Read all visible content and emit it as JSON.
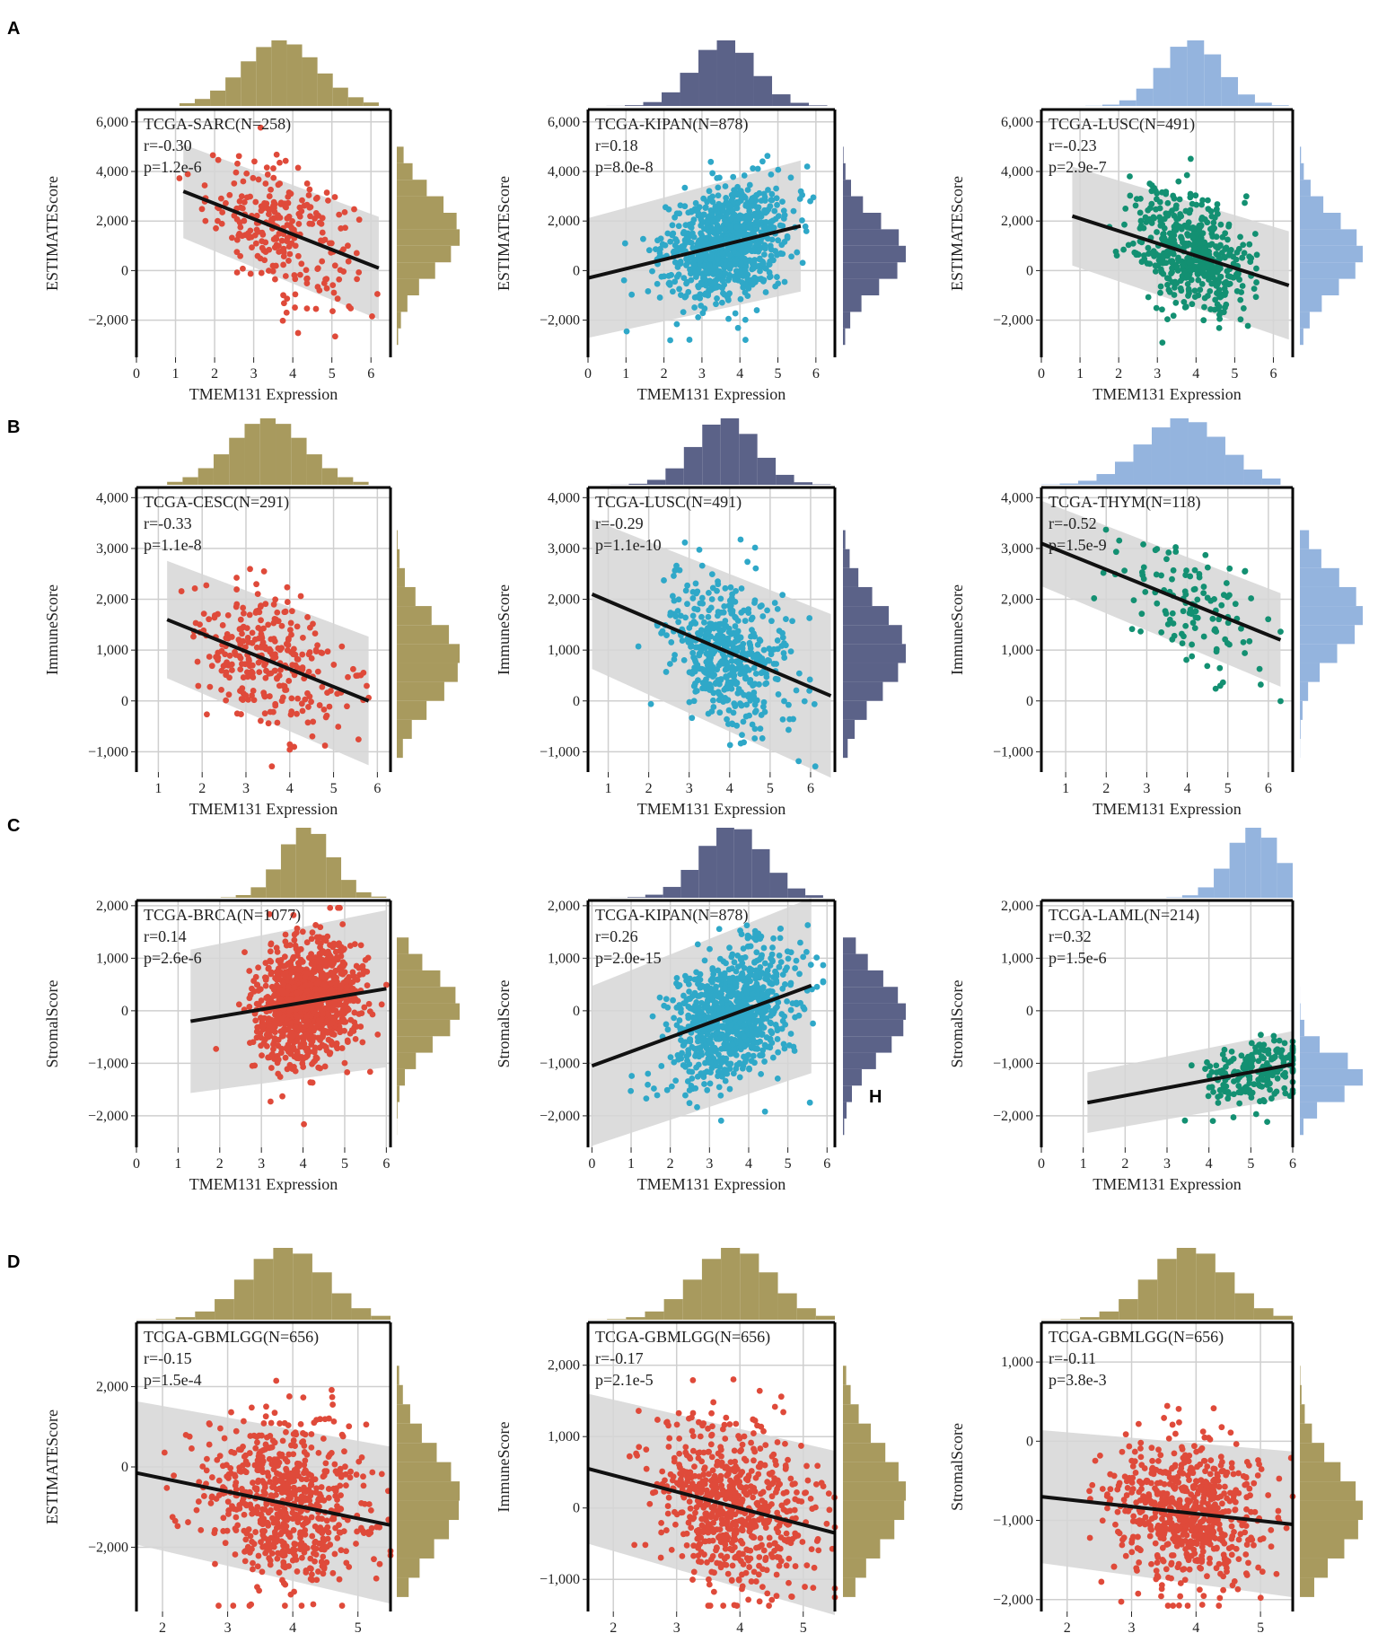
{
  "panel_labels": [
    "A",
    "B",
    "C",
    "D"
  ],
  "stray_label": "H",
  "colors": {
    "olive": "#a89a5e",
    "navy": "#5b6288",
    "lightblue": "#94b4de",
    "red": "#df4a3a",
    "cyan": "#2fa8c8",
    "teal": "#139072",
    "band": "#d6d6d6",
    "fit": "#111111"
  },
  "chart_data": [
    {
      "type": "scatter",
      "row": "A",
      "col": 0,
      "cohort": "TCGA-SARC(N=258)",
      "r_text": "r=-0.30",
      "p_text": "p=1.2e-6",
      "n": 258,
      "xlabel": "TMEM131 Expression",
      "ylabel": "ESTIMATEScore",
      "xlim": [
        0,
        6.5
      ],
      "ylim": [
        -3500,
        6500
      ],
      "xticks": [
        0,
        1,
        2,
        3,
        4,
        5,
        6
      ],
      "yticks": [
        -2000,
        0,
        2000,
        4000,
        6000
      ],
      "xtick_labels": [
        "0",
        "1",
        "2",
        "3",
        "4",
        "5",
        "6"
      ],
      "ytick_labels": [
        "−2,000",
        "0",
        "2,000",
        "4,000",
        "6,000"
      ],
      "point_color": "#df4a3a",
      "hist_color": "#a89a5e",
      "x_mean": 3.7,
      "x_sd": 0.95,
      "y_mean": 1500,
      "y_sd": 1500,
      "x_min_data": 1.1,
      "x_max_data": 6.2,
      "fit_line": {
        "x": [
          1.2,
          6.2
        ],
        "y": [
          3200,
          100
        ]
      },
      "band_halfwidth": 1800
    },
    {
      "type": "scatter",
      "row": "A",
      "col": 1,
      "cohort": "TCGA-KIPAN(N=878)",
      "r_text": "r=0.18",
      "p_text": "p=8.0e-8",
      "n": 878,
      "xlabel": "TMEM131 Expression",
      "ylabel": "ESTIMATEScore",
      "xlim": [
        0,
        6.5
      ],
      "ylim": [
        -3500,
        6500
      ],
      "xticks": [
        0,
        1,
        2,
        3,
        4,
        5,
        6
      ],
      "yticks": [
        -2000,
        0,
        2000,
        4000,
        6000
      ],
      "xtick_labels": [
        "0",
        "1",
        "2",
        "3",
        "4",
        "5",
        "6"
      ],
      "ytick_labels": [
        "−2,000",
        "0",
        "2,000",
        "4,000",
        "6,000"
      ],
      "point_color": "#2fa8c8",
      "hist_color": "#5b6288",
      "x_mean": 3.6,
      "x_sd": 0.8,
      "y_mean": 700,
      "y_sd": 1300,
      "x_min_data": 0,
      "x_max_data": 6.3,
      "fit_line": {
        "x": [
          0,
          5.6
        ],
        "y": [
          -300,
          1800
        ]
      },
      "band_halfwidth": 2300
    },
    {
      "type": "scatter",
      "row": "A",
      "col": 2,
      "cohort": "TCGA-LUSC(N=491)",
      "r_text": "r=-0.23",
      "p_text": "p=2.9e-7",
      "n": 491,
      "xlabel": "TMEM131 Expression",
      "ylabel": "ESTIMATEScore",
      "xlim": [
        0,
        6.5
      ],
      "ylim": [
        -3500,
        6500
      ],
      "xticks": [
        0,
        1,
        2,
        3,
        4,
        5,
        6
      ],
      "yticks": [
        -2000,
        0,
        2000,
        4000,
        6000
      ],
      "xtick_labels": [
        "0",
        "1",
        "2",
        "3",
        "4",
        "5",
        "6"
      ],
      "ytick_labels": [
        "−2,000",
        "0",
        "2,000",
        "4,000",
        "6,000"
      ],
      "point_color": "#139072",
      "hist_color": "#94b4de",
      "x_mean": 3.9,
      "x_sd": 0.75,
      "y_mean": 700,
      "y_sd": 1400,
      "x_min_data": 0.7,
      "x_max_data": 6.4,
      "fit_line": {
        "x": [
          0.8,
          6.4
        ],
        "y": [
          2200,
          -600
        ]
      },
      "band_halfwidth": 1900
    },
    {
      "type": "scatter",
      "row": "B",
      "col": 0,
      "cohort": "TCGA-CESC(N=291)",
      "r_text": "r=-0.33",
      "p_text": "p=1.1e-8",
      "n": 291,
      "xlabel": "TMEM131 Expression",
      "ylabel": "ImmuneScore",
      "xlim": [
        0.5,
        6.3
      ],
      "ylim": [
        -1400,
        4200
      ],
      "xticks": [
        1,
        2,
        3,
        4,
        5,
        6
      ],
      "yticks": [
        -1000,
        0,
        1000,
        2000,
        3000,
        4000
      ],
      "xtick_labels": [
        "1",
        "2",
        "3",
        "4",
        "5",
        "6"
      ],
      "ytick_labels": [
        "−1,000",
        "0",
        "1,000",
        "2,000",
        "3,000",
        "4,000"
      ],
      "point_color": "#df4a3a",
      "hist_color": "#a89a5e",
      "x_mean": 3.5,
      "x_sd": 0.85,
      "y_mean": 800,
      "y_sd": 800,
      "x_min_data": 1.2,
      "x_max_data": 5.8,
      "fit_line": {
        "x": [
          1.2,
          5.8
        ],
        "y": [
          1600,
          0
        ]
      },
      "band_halfwidth": 1100
    },
    {
      "type": "scatter",
      "row": "B",
      "col": 1,
      "cohort": "TCGA-LUSC(N=491)",
      "r_text": "r=-0.29",
      "p_text": "p=1.1e-10",
      "n": 491,
      "xlabel": "TMEM131 Expression",
      "ylabel": "ImmuneScore",
      "xlim": [
        0.5,
        6.6
      ],
      "ylim": [
        -1400,
        4200
      ],
      "xticks": [
        1,
        2,
        3,
        4,
        5,
        6
      ],
      "yticks": [
        -1000,
        0,
        1000,
        2000,
        3000,
        4000
      ],
      "xtick_labels": [
        "1",
        "2",
        "3",
        "4",
        "5",
        "6"
      ],
      "ytick_labels": [
        "−1,000",
        "0",
        "1,000",
        "2,000",
        "3,000",
        "4,000"
      ],
      "point_color": "#2fa8c8",
      "hist_color": "#5b6288",
      "x_mean": 3.9,
      "x_sd": 0.75,
      "y_mean": 1000,
      "y_sd": 850,
      "x_min_data": 0.6,
      "x_max_data": 6.5,
      "fit_line": {
        "x": [
          0.6,
          6.5
        ],
        "y": [
          2100,
          100
        ]
      },
      "band_halfwidth": 1400
    },
    {
      "type": "scatter",
      "row": "B",
      "col": 2,
      "cohort": "TCGA-THYM(N=118)",
      "r_text": "r=-0.52",
      "p_text": "p=1.5e-9",
      "n": 118,
      "xlabel": "TMEM131 Expression",
      "ylabel": "ImmuneScore",
      "xlim": [
        0.4,
        6.6
      ],
      "ylim": [
        -1400,
        4200
      ],
      "xticks": [
        1,
        2,
        3,
        4,
        5,
        6
      ],
      "yticks": [
        -1000,
        0,
        1000,
        2000,
        3000,
        4000
      ],
      "xtick_labels": [
        "1",
        "2",
        "3",
        "4",
        "5",
        "6"
      ],
      "ytick_labels": [
        "−1,000",
        "0",
        "1,000",
        "2,000",
        "3,000",
        "4,000"
      ],
      "point_color": "#139072",
      "hist_color": "#94b4de",
      "x_mean": 3.9,
      "x_sd": 1.0,
      "y_mean": 1700,
      "y_sd": 750,
      "x_min_data": 0.4,
      "x_max_data": 6.3,
      "fit_line": {
        "x": [
          0.4,
          6.3
        ],
        "y": [
          3100,
          1200
        ]
      },
      "band_halfwidth": 800
    },
    {
      "type": "scatter",
      "row": "C",
      "col": 0,
      "cohort": "TCGA-BRCA(N=1077)",
      "r_text": "r=0.14",
      "p_text": "p=2.6e-6",
      "n": 1077,
      "xlabel": "TMEM131 Expression",
      "ylabel": "StromalScore",
      "xlim": [
        0,
        6.1
      ],
      "ylim": [
        -2600,
        2100
      ],
      "xticks": [
        0,
        1,
        2,
        3,
        4,
        5,
        6
      ],
      "yticks": [
        -2000,
        -1000,
        0,
        1000,
        2000
      ],
      "xtick_labels": [
        "0",
        "1",
        "2",
        "3",
        "4",
        "5",
        "6"
      ],
      "ytick_labels": [
        "−2,000",
        "−1,000",
        "0",
        "1,000",
        "2,000"
      ],
      "point_color": "#df4a3a",
      "hist_color": "#a89a5e",
      "x_mean": 4.1,
      "x_sd": 0.6,
      "y_mean": 50,
      "y_sd": 650,
      "x_min_data": 1.3,
      "x_max_data": 6.0,
      "fit_line": {
        "x": [
          1.3,
          6.0
        ],
        "y": [
          -200,
          420
        ]
      },
      "band_halfwidth": 1300
    },
    {
      "type": "scatter",
      "row": "C",
      "col": 1,
      "cohort": "TCGA-KIPAN(N=878)",
      "r_text": "r=0.26",
      "p_text": "p=2.0e-15",
      "n": 878,
      "xlabel": "TMEM131 Expression",
      "ylabel": "StromalScore",
      "xlim": [
        -0.1,
        6.2
      ],
      "ylim": [
        -2600,
        2100
      ],
      "xticks": [
        0,
        1,
        2,
        3,
        4,
        5,
        6
      ],
      "yticks": [
        -2000,
        -1000,
        0,
        1000,
        2000
      ],
      "xtick_labels": [
        "0",
        "1",
        "2",
        "3",
        "4",
        "5",
        "6"
      ],
      "ytick_labels": [
        "−2,000",
        "−1,000",
        "0",
        "1,000",
        "2,000"
      ],
      "point_color": "#2fa8c8",
      "hist_color": "#5b6288",
      "x_mean": 3.6,
      "x_sd": 0.8,
      "y_mean": -100,
      "y_sd": 750,
      "x_min_data": 0,
      "x_max_data": 5.9,
      "fit_line": {
        "x": [
          0,
          5.6
        ],
        "y": [
          -1050,
          480
        ]
      },
      "band_halfwidth": 1450
    },
    {
      "type": "scatter",
      "row": "C",
      "col": 2,
      "cohort": "TCGA-LAML(N=214)",
      "r_text": "r=0.32",
      "p_text": "p=1.5e-6",
      "n": 214,
      "xlabel": "TMEM131 Expression",
      "ylabel": "StromalScore",
      "xlim": [
        0,
        6.0
      ],
      "ylim": [
        -2600,
        2100
      ],
      "xticks": [
        0,
        1,
        2,
        3,
        4,
        5,
        6
      ],
      "yticks": [
        -2000,
        -1000,
        0,
        1000,
        2000
      ],
      "xtick_labels": [
        "0",
        "1",
        "2",
        "3",
        "4",
        "5",
        "6"
      ],
      "ytick_labels": [
        "−2,000",
        "−1,000",
        "0",
        "1,000",
        "2,000"
      ],
      "point_color": "#139072",
      "hist_color": "#94b4de",
      "x_mean": 5.1,
      "x_sd": 0.6,
      "y_mean": -1250,
      "y_sd": 400,
      "x_min_data": 1.1,
      "x_max_data": 6.0,
      "fit_line": {
        "x": [
          1.1,
          6.0
        ],
        "y": [
          -1750,
          -1020
        ]
      },
      "band_halfwidth": 550
    },
    {
      "type": "scatter",
      "row": "D",
      "col": 0,
      "cohort": "TCGA-GBMLGG(N=656)",
      "r_text": "r=-0.15",
      "p_text": "p=1.5e-4",
      "n": 656,
      "xlabel": "TMEM131 Expression",
      "ylabel": "ESTIMATEScore",
      "xlim": [
        1.6,
        5.5
      ],
      "ylim": [
        -3600,
        3600
      ],
      "xticks": [
        2,
        3,
        4,
        5
      ],
      "yticks": [
        -2000,
        0,
        2000
      ],
      "xtick_labels": [
        "2",
        "3",
        "4",
        "5"
      ],
      "ytick_labels": [
        "−2,000",
        "0",
        "2,000"
      ],
      "point_color": "#df4a3a",
      "hist_color": "#a89a5e",
      "x_mean": 3.9,
      "x_sd": 0.6,
      "y_mean": -800,
      "y_sd": 1200,
      "x_min_data": 1.6,
      "x_max_data": 5.5,
      "fit_line": {
        "x": [
          1.6,
          5.5
        ],
        "y": [
          -150,
          -1450
        ]
      },
      "band_halfwidth": 1700
    },
    {
      "type": "scatter",
      "row": "D",
      "col": 1,
      "cohort": "TCGA-GBMLGG(N=656)",
      "r_text": "r=-0.17",
      "p_text": "p=2.1e-5",
      "n": 656,
      "xlabel": "TMEM131 Expression",
      "ylabel": "ImmuneScore",
      "xlim": [
        1.6,
        5.5
      ],
      "ylim": [
        -1450,
        2600
      ],
      "xticks": [
        2,
        3,
        4,
        5
      ],
      "yticks": [
        -1000,
        0,
        1000,
        2000
      ],
      "xtick_labels": [
        "2",
        "3",
        "4",
        "5"
      ],
      "ytick_labels": [
        "−1,000",
        "0",
        "1,000",
        "2,000"
      ],
      "point_color": "#df4a3a",
      "hist_color": "#a89a5e",
      "x_mean": 3.9,
      "x_sd": 0.6,
      "y_mean": 150,
      "y_sd": 700,
      "x_min_data": 1.6,
      "x_max_data": 5.5,
      "fit_line": {
        "x": [
          1.6,
          5.5
        ],
        "y": [
          550,
          -350
        ]
      },
      "band_halfwidth": 1000
    },
    {
      "type": "scatter",
      "row": "D",
      "col": 2,
      "cohort": "TCGA-GBMLGG(N=656)",
      "r_text": "r=-0.11",
      "p_text": "p=3.8e-3",
      "n": 656,
      "xlabel": "TMEM131 Expression",
      "ylabel": "StromalScore",
      "xlim": [
        1.6,
        5.5
      ],
      "ylim": [
        -2150,
        1500
      ],
      "xticks": [
        2,
        3,
        4,
        5
      ],
      "yticks": [
        -2000,
        -1000,
        0,
        1000
      ],
      "xtick_labels": [
        "2",
        "3",
        "4",
        "5"
      ],
      "ytick_labels": [
        "−2,000",
        "−1,000",
        "0",
        "1,000"
      ],
      "point_color": "#df4a3a",
      "hist_color": "#a89a5e",
      "x_mean": 3.9,
      "x_sd": 0.6,
      "y_mean": -900,
      "y_sd": 550,
      "x_min_data": 1.6,
      "x_max_data": 5.5,
      "fit_line": {
        "x": [
          1.6,
          5.5
        ],
        "y": [
          -700,
          -1050
        ]
      },
      "band_halfwidth": 800
    }
  ]
}
